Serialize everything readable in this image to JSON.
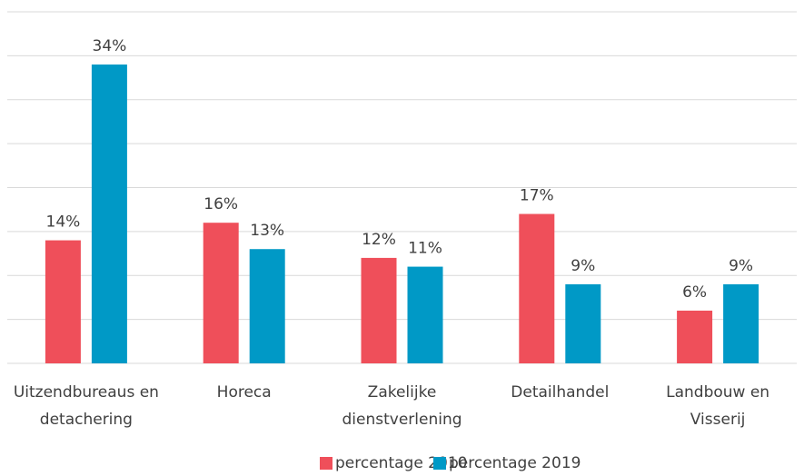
{
  "chart_data": {
    "type": "bar",
    "categories": [
      "Uitzendbureaus en detachering",
      "Horeca",
      "Zakelijke dienstverlening",
      "Detailhandel",
      "Landbouw en Visserij"
    ],
    "series": [
      {
        "name": "percentage 2010",
        "color": "#ef4f5a",
        "values": [
          14,
          16,
          12,
          17,
          6
        ],
        "value_labels": [
          "14%",
          "16%",
          "12%",
          "17%",
          "6%"
        ]
      },
      {
        "name": "percentage 2019",
        "color": "#0099c6",
        "values": [
          34,
          13,
          11,
          9,
          9
        ],
        "value_labels": [
          "34%",
          "13%",
          "11%",
          "9%",
          "9%"
        ]
      }
    ],
    "ylim": [
      0,
      40
    ],
    "yticks": [
      0,
      5,
      10,
      15,
      20,
      25,
      30,
      35,
      40
    ],
    "grid": true,
    "legend": "bottom"
  }
}
